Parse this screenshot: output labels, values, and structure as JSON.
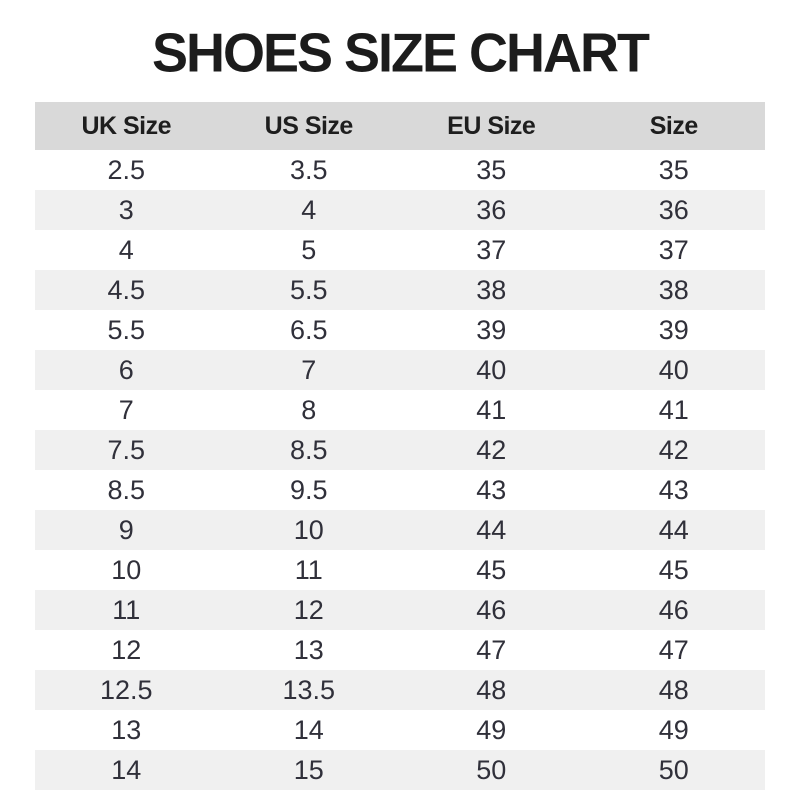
{
  "page": {
    "title": "SHOES SIZE CHART"
  },
  "colors": {
    "header_bg": "#d9d9d9",
    "stripe_bg": "#f0f0f0",
    "title_text": "#1c1c1c",
    "cell_text": "#30303a"
  },
  "chart_data": {
    "type": "table",
    "title": "SHOES SIZE CHART",
    "columns": [
      "UK Size",
      "US Size",
      "EU Size",
      "Size"
    ],
    "rows": [
      [
        "2.5",
        "3.5",
        "35",
        "35"
      ],
      [
        "3",
        "4",
        "36",
        "36"
      ],
      [
        "4",
        "5",
        "37",
        "37"
      ],
      [
        "4.5",
        "5.5",
        "38",
        "38"
      ],
      [
        "5.5",
        "6.5",
        "39",
        "39"
      ],
      [
        "6",
        "7",
        "40",
        "40"
      ],
      [
        "7",
        "8",
        "41",
        "41"
      ],
      [
        "7.5",
        "8.5",
        "42",
        "42"
      ],
      [
        "8.5",
        "9.5",
        "43",
        "43"
      ],
      [
        "9",
        "10",
        "44",
        "44"
      ],
      [
        "10",
        "11",
        "45",
        "45"
      ],
      [
        "11",
        "12",
        "46",
        "46"
      ],
      [
        "12",
        "13",
        "47",
        "47"
      ],
      [
        "12.5",
        "13.5",
        "48",
        "48"
      ],
      [
        "13",
        "14",
        "49",
        "49"
      ],
      [
        "14",
        "15",
        "50",
        "50"
      ]
    ],
    "layout": {
      "zebra_striping": true,
      "first_row_background": "white",
      "alternate_row_background": "#f0f0f0",
      "header_background": "#d9d9d9"
    }
  }
}
